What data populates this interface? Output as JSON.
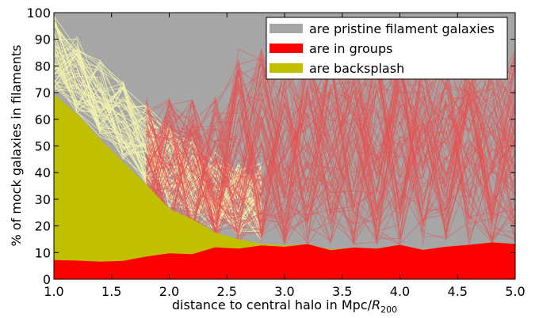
{
  "chart_data": {
    "type": "area",
    "title": "",
    "xlabel_prefix": "distance to central halo in Mpc/",
    "xlabel_var": "R",
    "xlabel_sub": "200",
    "ylabel": "% of mock galaxies in filaments",
    "xlim": [
      1.0,
      5.0
    ],
    "ylim": [
      0,
      100
    ],
    "x_ticks": [
      1.0,
      1.5,
      2.0,
      2.5,
      3.0,
      3.5,
      4.0,
      4.5,
      5.0
    ],
    "x_tick_labels": [
      "1.0",
      "1.5",
      "2.0",
      "2.5",
      "3.0",
      "3.5",
      "4.0",
      "4.5",
      "5.0"
    ],
    "y_ticks": [
      0,
      10,
      20,
      30,
      40,
      50,
      60,
      70,
      80,
      90,
      100
    ],
    "y_tick_labels": [
      "0",
      "10",
      "20",
      "30",
      "40",
      "50",
      "60",
      "70",
      "80",
      "90",
      "100"
    ],
    "grid": false,
    "legend_position": "top-right",
    "x": [
      1.0,
      1.2,
      1.4,
      1.6,
      1.8,
      2.0,
      2.2,
      2.4,
      2.6,
      2.8,
      3.0,
      3.2,
      3.4,
      3.6,
      3.8,
      4.0,
      4.2,
      4.4,
      4.6,
      4.8,
      5.0
    ],
    "series": [
      {
        "name": "are pristine filament galaxies",
        "color": "#a6a6a6",
        "values": [
          100,
          100,
          100,
          100,
          100,
          100,
          100,
          100,
          100,
          100,
          100,
          100,
          100,
          100,
          100,
          100,
          100,
          100,
          100,
          100,
          100
        ]
      },
      {
        "name": "are in groups",
        "color": "#ff0000",
        "values": [
          7.2,
          7.0,
          6.6,
          6.9,
          8.5,
          9.7,
          9.4,
          12.0,
          11.5,
          12.7,
          12.2,
          13.2,
          10.9,
          11.9,
          11.5,
          12.9,
          11.0,
          12.2,
          12.9,
          13.8,
          13.3
        ]
      },
      {
        "name": "are backsplash",
        "color": "#c0c000",
        "values": [
          69.3,
          62.0,
          52.5,
          44.0,
          35.5,
          26.5,
          22.5,
          17.5,
          15.0,
          13.3,
          12.7,
          13.2,
          11.2,
          11.9,
          11.5,
          12.9,
          11.0,
          12.2,
          12.9,
          13.8,
          13.3
        ]
      }
    ],
    "colors": {
      "background": "#a6a6a6",
      "groups": "#ff0000",
      "backsplash": "#c0c000",
      "backsplash_realizations": "#f2f2b0",
      "group_realizations": "#e85050",
      "axes": "#000000"
    }
  }
}
